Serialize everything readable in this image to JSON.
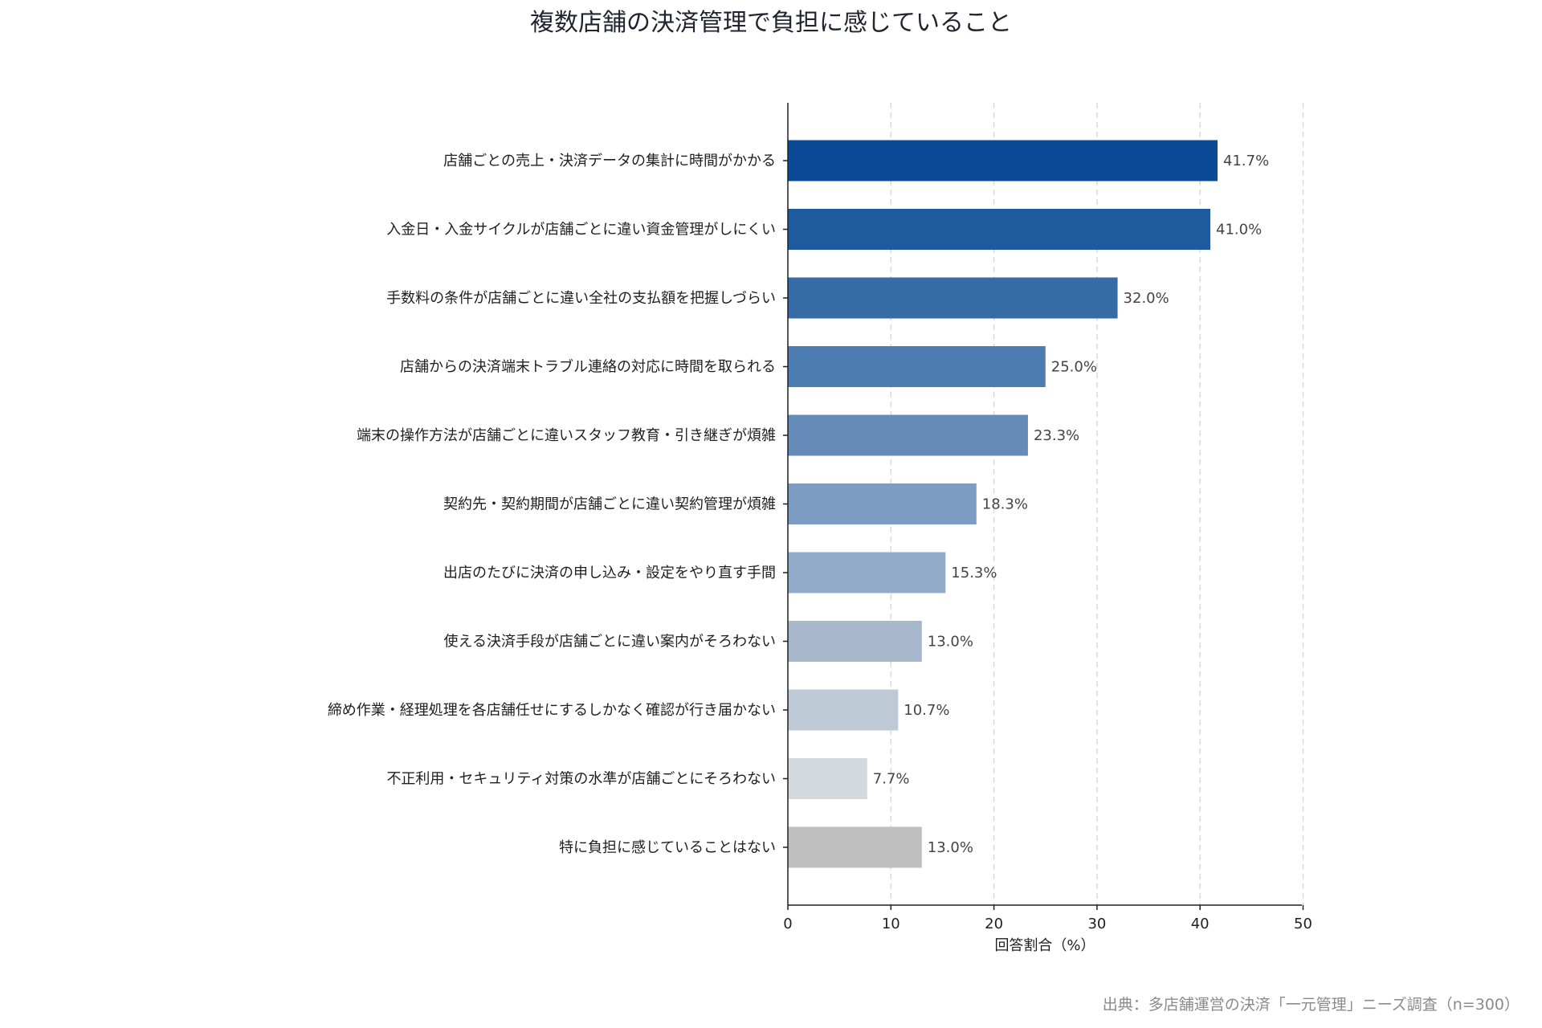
{
  "chart_data": {
    "type": "bar",
    "orientation": "horizontal",
    "title": "複数店舗の決済管理で負担に感じていること",
    "xlabel": "回答割合（%）",
    "ylabel": "",
    "xlim": [
      0,
      50
    ],
    "xticks": [
      0,
      10,
      20,
      30,
      40,
      50
    ],
    "grid": "vertical-dashed",
    "value_suffix": "%",
    "categories": [
      "店舗ごとの売上・決済データの集計に時間がかかる",
      "入金日・入金サイクルが店舗ごとに違い資金管理がしにくい",
      "手数料の条件が店舗ごとに違い全社の支払額を把握しづらい",
      "店舗からの決済端末トラブル連絡の対応に時間を取られる",
      "端末の操作方法が店舗ごとに違いスタッフ教育・引き継ぎが煩雑",
      "契約先・契約期間が店舗ごとに違い契約管理が煩雑",
      "出店のたびに決済の申し込み・設定をやり直す手間",
      "使える決済手段が店舗ごとに違い案内がそろわない",
      "締め作業・経理処理を各店舗任せにするしかなく確認が行き届かない",
      "不正利用・セキュリティ対策の水準が店舗ごとにそろわない",
      "特に負担に感じていることはない"
    ],
    "values": [
      41.7,
      41.0,
      32.0,
      25.0,
      23.3,
      18.3,
      15.3,
      13.0,
      10.7,
      7.7,
      13.0
    ],
    "colors": [
      "#0b4a96",
      "#1f5a9e",
      "#366ba6",
      "#4c7cb0",
      "#658cb8",
      "#7c9cc1",
      "#91abc8",
      "#a7b8cd",
      "#bdc9d5",
      "#d2d8dc",
      "#bfbfbf"
    ]
  },
  "source": "出典：多店舗運営の決済「一元管理」ニーズ調査（n=300）"
}
